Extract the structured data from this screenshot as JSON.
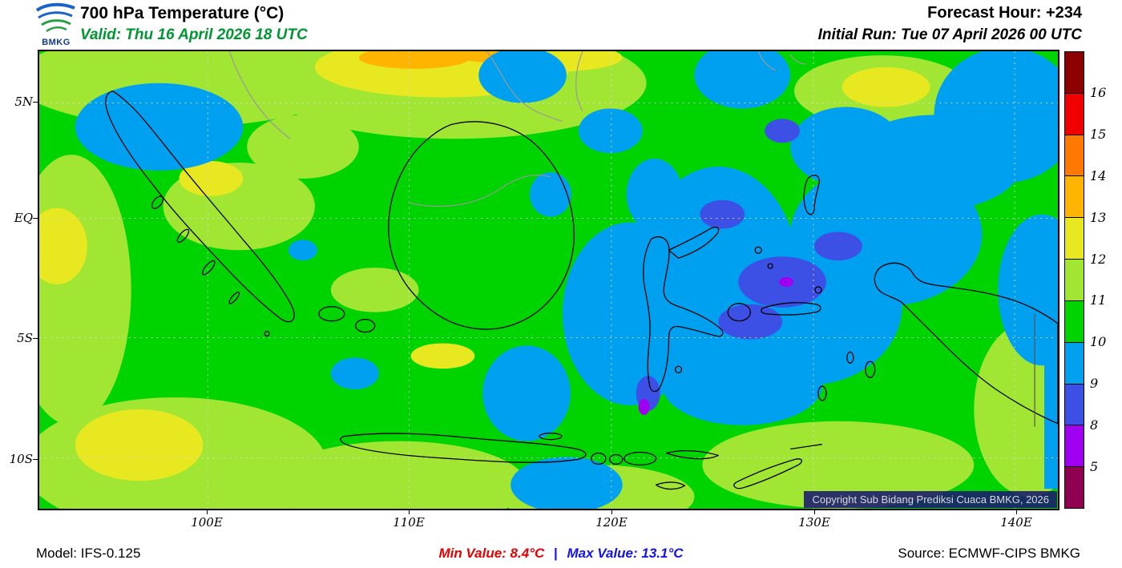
{
  "header": {
    "logo_text": "BMKG",
    "title": "700 hPa Temperature (°C)",
    "valid": "Valid: Thu 16 April 2026 18 UTC",
    "forecast_hour": "Forecast Hour: +234",
    "initial_run": "Initial Run: Tue 07 April 2026 00 UTC"
  },
  "map": {
    "copyright": "Copyright Sub Bidang Prediksi Cuaca BMKG, 2026",
    "lat_labels": [
      "5N",
      "EQ",
      "5S",
      "10S"
    ],
    "lon_labels": [
      "100E",
      "110E",
      "120E",
      "130E",
      "140E"
    ]
  },
  "colorbar": {
    "labels": [
      "16",
      "15",
      "14",
      "13",
      "12",
      "11",
      "10",
      "9",
      "8",
      "5"
    ],
    "colors": [
      "#8c0000",
      "#f00000",
      "#ff7800",
      "#ffb400",
      "#e8e820",
      "#a0e632",
      "#00d400",
      "#00a0f0",
      "#3c50e6",
      "#a000f0",
      "#900050"
    ]
  },
  "footer": {
    "model": "Model: IFS-0.125",
    "min_value": "Min Value: 8.4°C",
    "separator": "|",
    "max_value": "Max Value: 13.1°C",
    "source": "Source: ECMWF-CIPS BMKG"
  }
}
